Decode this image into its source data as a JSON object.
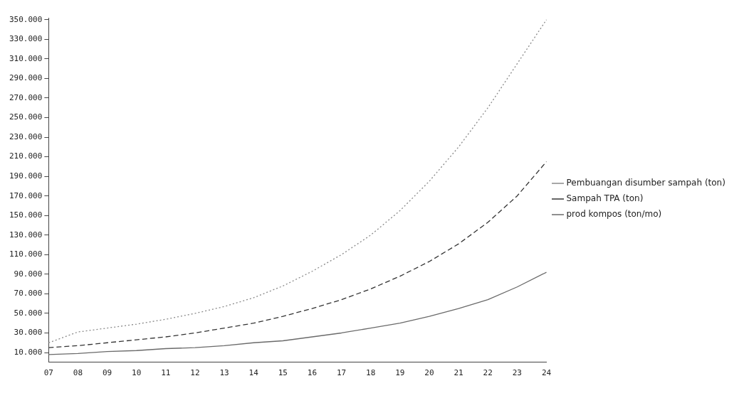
{
  "chart_data": {
    "type": "line",
    "categories": [
      "07",
      "08",
      "09",
      "10",
      "11",
      "12",
      "13",
      "14",
      "15",
      "16",
      "17",
      "18",
      "19",
      "20",
      "21",
      "22",
      "23",
      "24"
    ],
    "series": [
      {
        "name": "Pembuangan disumber sampah (ton)",
        "color": "#8a8a8a",
        "line_style": "dotted",
        "values": [
          20000,
          31000,
          35000,
          39000,
          44000,
          50000,
          57000,
          66000,
          78000,
          93000,
          110000,
          130000,
          155000,
          185000,
          220000,
          260000,
          305000,
          350000
        ]
      },
      {
        "name": "Sampah TPA (ton)",
        "color": "#333333",
        "line_style": "dashed",
        "values": [
          15000,
          17000,
          20000,
          23000,
          26000,
          30000,
          35000,
          40000,
          47000,
          55000,
          64000,
          75000,
          88000,
          103000,
          121000,
          143000,
          170000,
          205000
        ]
      },
      {
        "name": "prod kompos (ton/mo)",
        "color": "#6a6a6a",
        "line_style": "solid",
        "values": [
          8000,
          9000,
          11000,
          12000,
          14000,
          15000,
          17000,
          20000,
          22000,
          26000,
          30000,
          35000,
          40000,
          47000,
          55000,
          64000,
          77000,
          92000
        ]
      }
    ],
    "ylim": [
      0,
      352000
    ],
    "yticks": [
      {
        "value": 10000,
        "label": "10.000"
      },
      {
        "value": 30000,
        "label": "30.000"
      },
      {
        "value": 50000,
        "label": "50.000"
      },
      {
        "value": 70000,
        "label": "70.000"
      },
      {
        "value": 90000,
        "label": "90.000"
      },
      {
        "value": 110000,
        "label": "110.000"
      },
      {
        "value": 130000,
        "label": "130.000"
      },
      {
        "value": 150000,
        "label": "150.000"
      },
      {
        "value": 170000,
        "label": "170.000"
      },
      {
        "value": 190000,
        "label": "190.000"
      },
      {
        "value": 210000,
        "label": "210.000"
      },
      {
        "value": 230000,
        "label": "230.000"
      },
      {
        "value": 250000,
        "label": "250.000"
      },
      {
        "value": 270000,
        "label": "270.000"
      },
      {
        "value": 290000,
        "label": "290.000"
      },
      {
        "value": 310000,
        "label": "310.000"
      },
      {
        "value": 330000,
        "label": "330.000"
      },
      {
        "value": 350000,
        "label": "350.000"
      }
    ],
    "grid": false,
    "legend": "right",
    "marker": "none"
  }
}
